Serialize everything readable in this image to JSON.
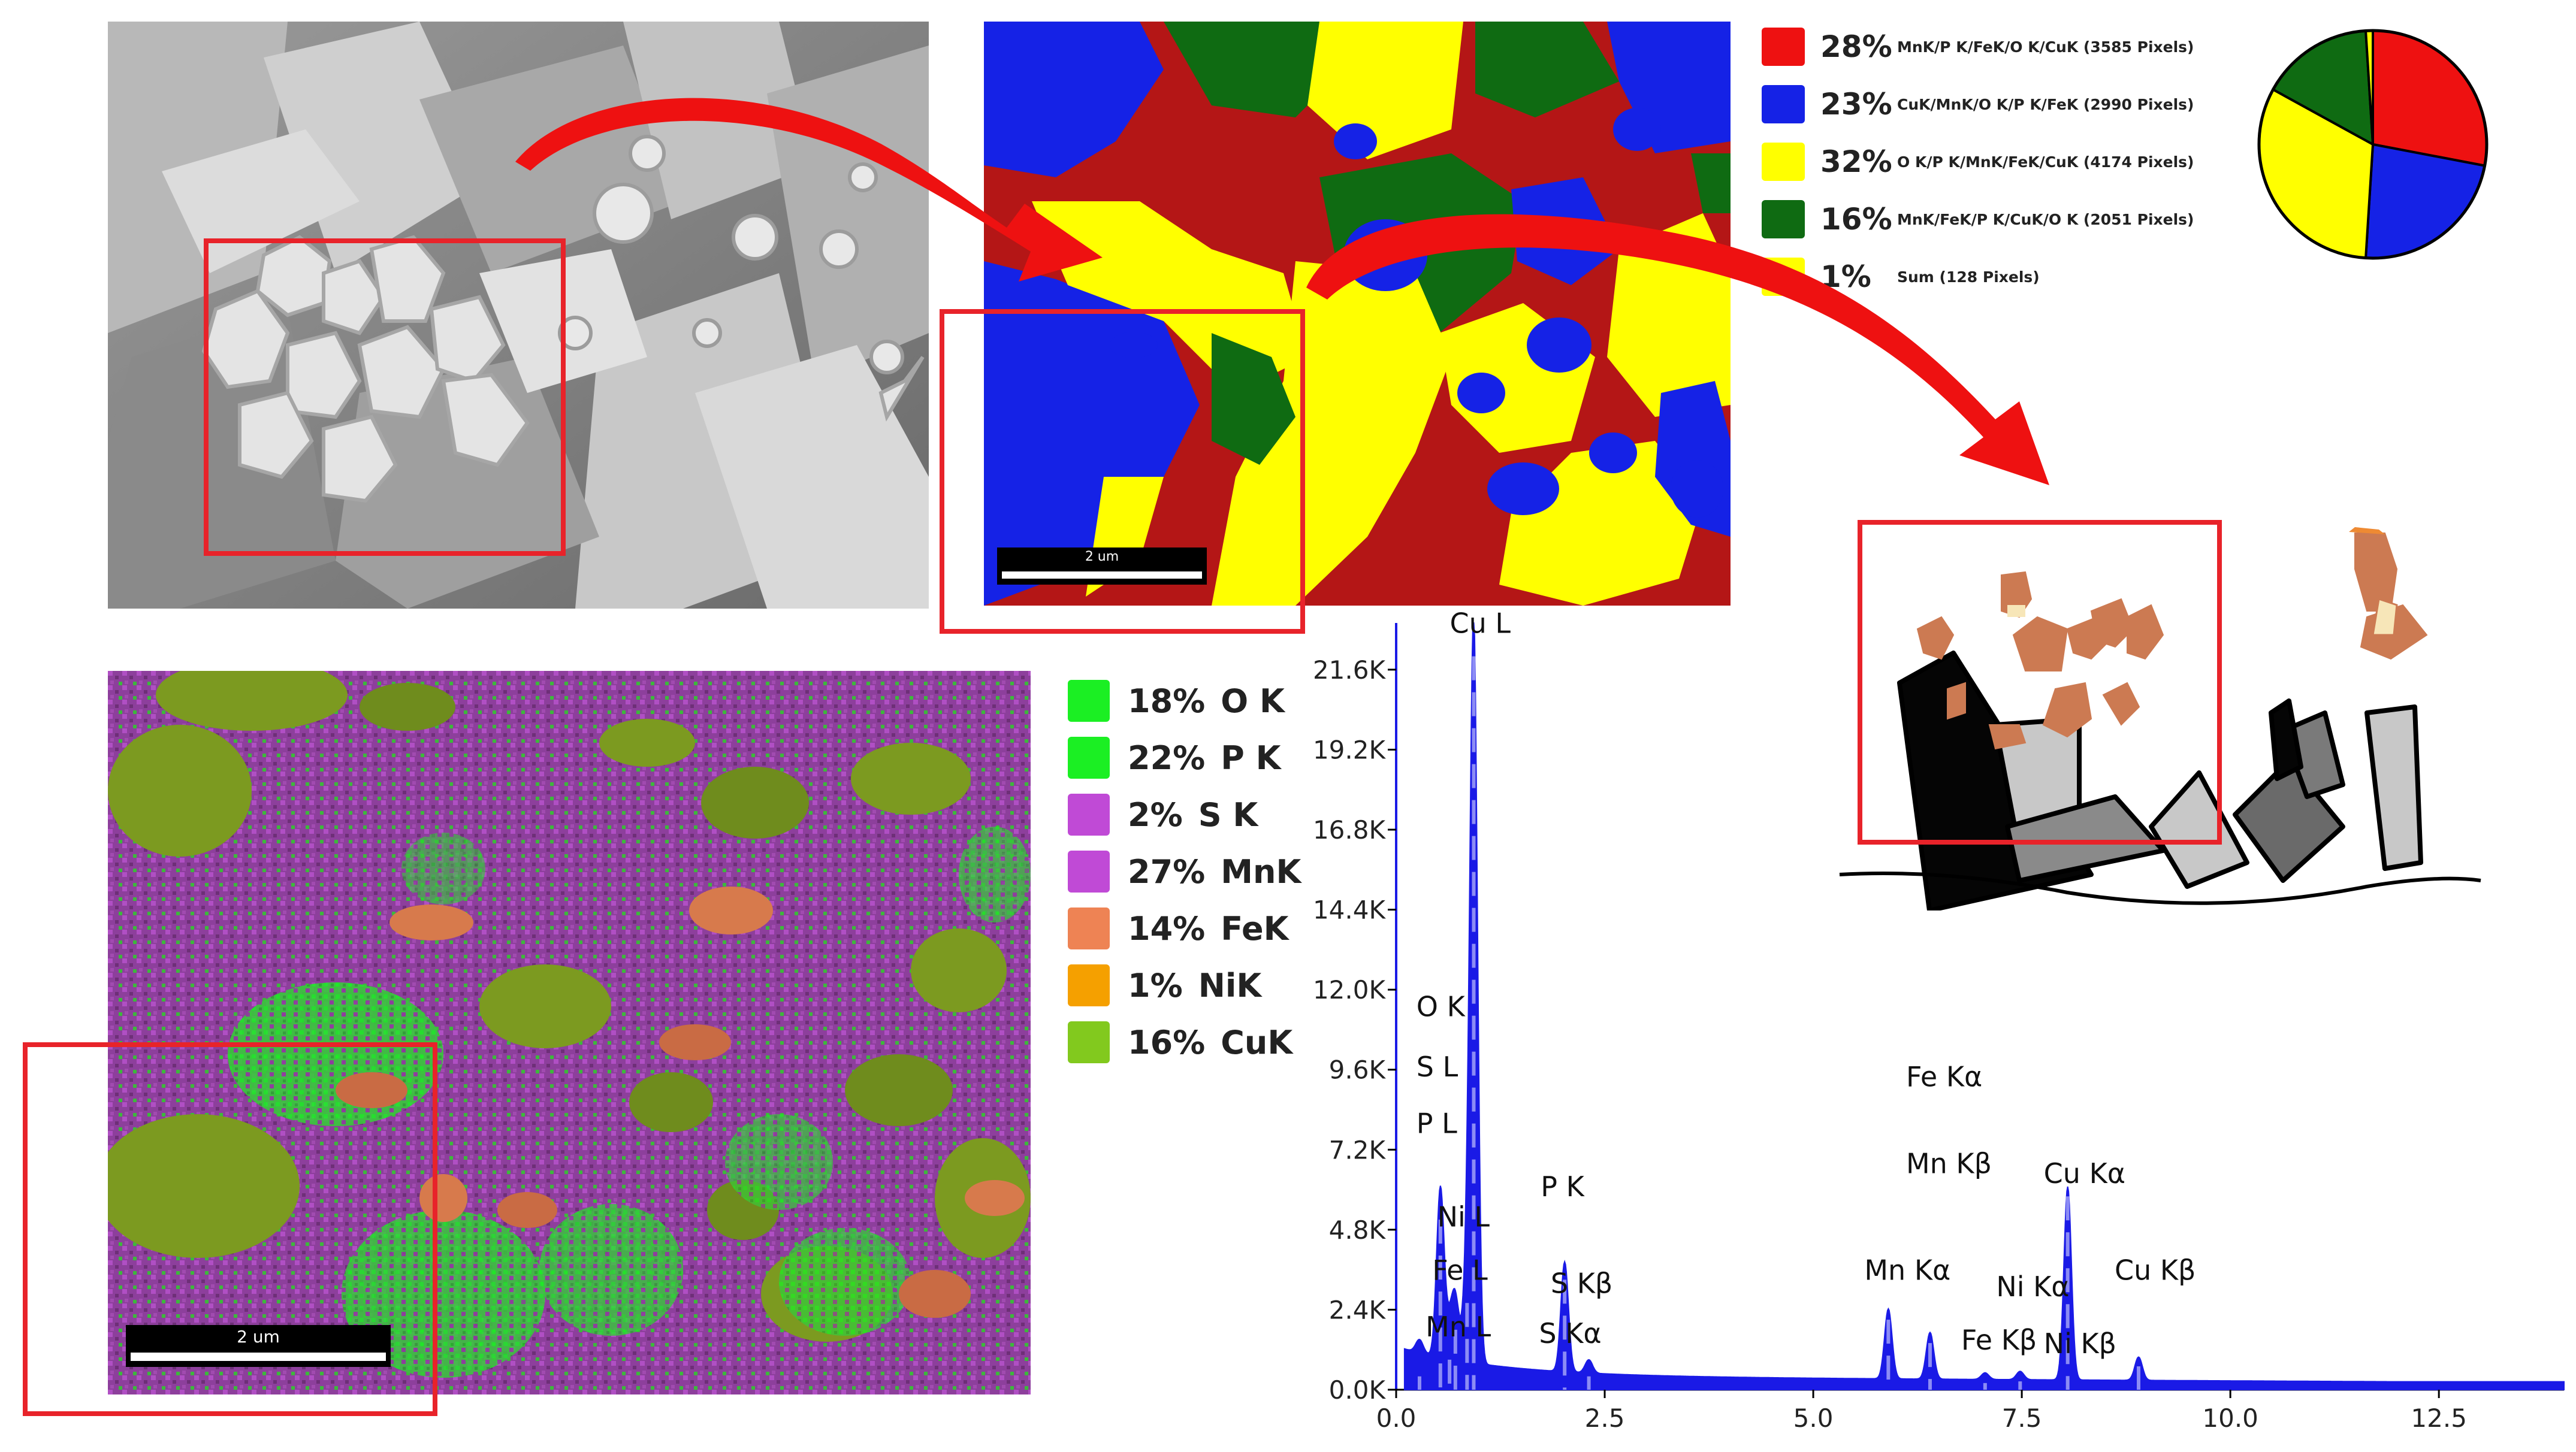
{
  "sem_image": {
    "label": "SEM micrograph"
  },
  "phase_map": {
    "scale_label": "2 um",
    "legend": [
      {
        "pct": "28%",
        "text": "MnK/P K/FeK/O K/CuK (3585 Pixels)",
        "color": "#ee1111"
      },
      {
        "pct": "23%",
        "text": "CuK/MnK/O K/P K/FeK (2990 Pixels)",
        "color": "#1522e6"
      },
      {
        "pct": "32%",
        "text": "O K/P K/MnK/FeK/CuK (4174 Pixels)",
        "color": "#ffff00"
      },
      {
        "pct": "16%",
        "text": "MnK/FeK/P K/CuK/O K (2051 Pixels)",
        "color": "#0f6b12"
      },
      {
        "pct": "1%",
        "text": "Sum (128 Pixels)",
        "color": "#ffff00"
      }
    ],
    "pie": [
      {
        "value": 28,
        "color": "#ee1111"
      },
      {
        "value": 23,
        "color": "#1522e6"
      },
      {
        "value": 32,
        "color": "#ffff00"
      },
      {
        "value": 16,
        "color": "#0f6b12"
      },
      {
        "value": 1,
        "color": "#ffff00"
      }
    ]
  },
  "element_map": {
    "scale_label": "2 um",
    "legend": [
      {
        "pct": "18%",
        "text": "O K",
        "color": "#1bef23"
      },
      {
        "pct": "22%",
        "text": "P K",
        "color": "#1bef23"
      },
      {
        "pct": "2%",
        "text": "S K",
        "color": "#c04ad6"
      },
      {
        "pct": "27%",
        "text": "MnK",
        "color": "#c04ad6"
      },
      {
        "pct": "14%",
        "text": "FeK",
        "color": "#ee8354"
      },
      {
        "pct": "1%",
        "text": "NiK",
        "color": "#f5a000"
      },
      {
        "pct": "16%",
        "text": "CuK",
        "color": "#82c91e"
      }
    ]
  },
  "colors": {
    "highlight_box": "#e8232a",
    "arrow": "#ee1111",
    "spectrum": "#1a1ae6"
  },
  "chart_data": {
    "type": "line",
    "title": "",
    "xlabel": "",
    "ylabel": "",
    "xlim": [
      0,
      14
    ],
    "ylim": [
      0,
      23000
    ],
    "x_ticks": [
      "0.0",
      "2.5",
      "5.0",
      "7.5",
      "10.0",
      "12.5"
    ],
    "y_ticks": [
      "0.0K",
      "2.4K",
      "4.8K",
      "7.2K",
      "9.6K",
      "12.0K",
      "14.4K",
      "16.8K",
      "19.2K",
      "21.6K"
    ],
    "series": [
      {
        "peaks": [
          {
            "x": 0.28,
            "y": 400
          },
          {
            "x": 0.53,
            "y": 5100
          },
          {
            "x": 0.64,
            "y": 900
          },
          {
            "x": 0.71,
            "y": 1800
          },
          {
            "x": 0.85,
            "y": 2600
          },
          {
            "x": 0.93,
            "y": 22000
          },
          {
            "x": 2.02,
            "y": 3300
          },
          {
            "x": 2.31,
            "y": 400
          },
          {
            "x": 5.9,
            "y": 2100
          },
          {
            "x": 6.4,
            "y": 1400
          },
          {
            "x": 7.06,
            "y": 200
          },
          {
            "x": 7.48,
            "y": 250
          },
          {
            "x": 8.05,
            "y": 5800
          },
          {
            "x": 8.9,
            "y": 700
          }
        ]
      }
    ],
    "annotations": [
      {
        "text": "Cu L",
        "x": 0.93,
        "y": 22700
      },
      {
        "text": "O  K",
        "x": 0.53,
        "y": 11200
      },
      {
        "text": "S  L",
        "x": 0.53,
        "y": 9400
      },
      {
        "text": "P  L",
        "x": 0.53,
        "y": 7700
      },
      {
        "text": "Ni L",
        "x": 0.78,
        "y": 4900
      },
      {
        "text": "Fe L",
        "x": 0.72,
        "y": 3300
      },
      {
        "text": "Mn L",
        "x": 0.64,
        "y": 1600
      },
      {
        "text": "P  K",
        "x": 2.02,
        "y": 5800
      },
      {
        "text": "S  Kβ",
        "x": 2.14,
        "y": 2900
      },
      {
        "text": "S  Kα",
        "x": 2.0,
        "y": 1400
      },
      {
        "text": "Fe Kα",
        "x": 6.4,
        "y": 9100
      },
      {
        "text": "Mn Kβ",
        "x": 6.4,
        "y": 6500
      },
      {
        "text": "Cu Kα",
        "x": 8.05,
        "y": 6200
      },
      {
        "text": "Mn Kα",
        "x": 5.9,
        "y": 3300
      },
      {
        "text": "Ni Kα",
        "x": 7.48,
        "y": 2800
      },
      {
        "text": "Cu Kβ",
        "x": 8.9,
        "y": 3300
      },
      {
        "text": "Fe Kβ",
        "x": 7.06,
        "y": 1200
      },
      {
        "text": "Ni Kβ",
        "x": 8.05,
        "y": 1100
      }
    ]
  }
}
